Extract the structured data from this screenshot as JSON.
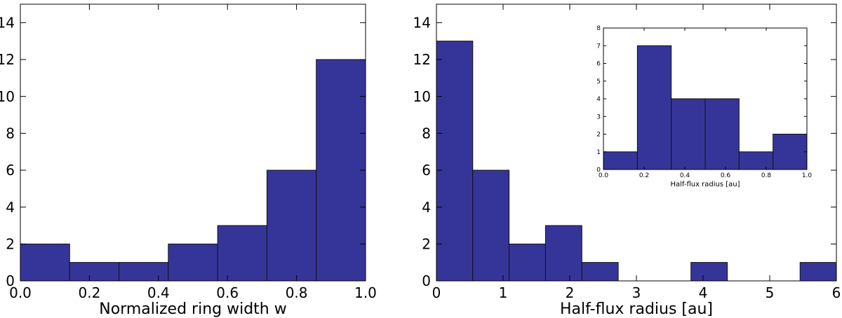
{
  "chart_data": [
    {
      "id": "left",
      "type": "bar",
      "xlabel": "Normalized ring width w",
      "ylabel": "",
      "xlim": [
        0,
        1
      ],
      "ylim": [
        0,
        15
      ],
      "xticks": [
        "0.0",
        "0.2",
        "0.4",
        "0.6",
        "0.8",
        "1.0"
      ],
      "xtick_values": [
        0,
        0.2,
        0.4,
        0.6,
        0.8,
        1.0
      ],
      "yticks": [
        "0",
        "2",
        "4",
        "6",
        "8",
        "10",
        "12",
        "14"
      ],
      "ytick_values": [
        0,
        2,
        4,
        6,
        8,
        10,
        12,
        14
      ],
      "bin_edges": [
        0,
        0.142857,
        0.285714,
        0.428571,
        0.571429,
        0.714286,
        0.857143,
        1.0
      ],
      "counts": [
        2,
        1,
        1,
        2,
        3,
        6,
        12
      ],
      "bar_color": "#353599"
    },
    {
      "id": "right",
      "type": "bar",
      "xlabel": "Half-flux radius [au]",
      "ylabel": "",
      "xlim": [
        0,
        6
      ],
      "ylim": [
        0,
        15
      ],
      "xticks": [
        "0",
        "1",
        "2",
        "3",
        "4",
        "5",
        "6"
      ],
      "xtick_values": [
        0,
        1,
        2,
        3,
        4,
        5,
        6
      ],
      "yticks": [
        "0",
        "2",
        "4",
        "6",
        "8",
        "10",
        "12",
        "14"
      ],
      "ytick_values": [
        0,
        2,
        4,
        6,
        8,
        10,
        12,
        14
      ],
      "bin_edges": [
        0,
        0.545,
        1.09,
        1.636,
        2.182,
        2.727,
        3.273,
        3.818,
        4.364,
        4.909,
        5.455,
        6.0
      ],
      "counts": [
        13,
        6,
        2,
        3,
        1,
        0,
        0,
        1,
        0,
        0,
        1
      ],
      "bar_color": "#353599"
    },
    {
      "id": "inset",
      "type": "bar",
      "xlabel": "Half-flux radius [au]",
      "ylabel": "",
      "xlim": [
        0,
        1
      ],
      "ylim": [
        0,
        8
      ],
      "xticks": [
        "0.0",
        "0.2",
        "0.4",
        "0.6",
        "0.8",
        "1.0"
      ],
      "xtick_values": [
        0,
        0.2,
        0.4,
        0.6,
        0.8,
        1.0
      ],
      "yticks": [
        "0",
        "1",
        "2",
        "3",
        "4",
        "5",
        "6",
        "7",
        "8"
      ],
      "ytick_values": [
        0,
        1,
        2,
        3,
        4,
        5,
        6,
        7,
        8
      ],
      "bin_edges": [
        0,
        0.1667,
        0.3333,
        0.5,
        0.6667,
        0.8333,
        1.0
      ],
      "counts": [
        1,
        7,
        4,
        4,
        1,
        2
      ],
      "bar_color": "#353599"
    }
  ]
}
